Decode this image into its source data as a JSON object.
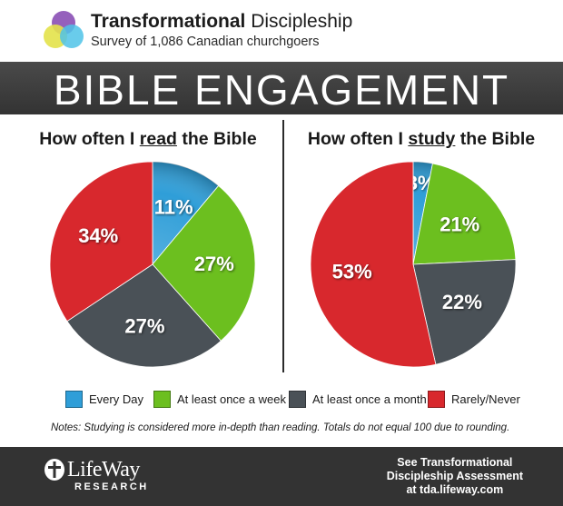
{
  "header": {
    "title_bold": "Transformational",
    "title_rest": " Discipleship",
    "subtitle": "Survey of 1,086 Canadian churchgoers"
  },
  "banner": {
    "title": "BIBLE ENGAGEMENT"
  },
  "chart_data": [
    {
      "type": "pie",
      "title_pre": "How often I ",
      "title_key": "read",
      "title_post": " the Bible",
      "categories": [
        "Every Day",
        "At least once a week",
        "At least once a month",
        "Rarely/Never"
      ],
      "values": [
        11,
        27,
        27,
        34
      ],
      "labels": [
        "11%",
        "27%",
        "27%",
        "34%"
      ]
    },
    {
      "type": "pie",
      "title_pre": "How often I ",
      "title_key": "study",
      "title_post": " the Bible",
      "categories": [
        "Every Day",
        "At least once a week",
        "At least once a month",
        "Rarely/Never"
      ],
      "values": [
        3,
        21,
        22,
        53
      ],
      "labels": [
        "3%",
        "21%",
        "22%",
        "53%"
      ]
    }
  ],
  "legend": {
    "items": [
      {
        "label": "Every Day",
        "color": "#2f9ed8"
      },
      {
        "label": "At least once a week",
        "color": "#6cbf1f"
      },
      {
        "label": "At least once a month",
        "color": "#4a5157"
      },
      {
        "label": "Rarely/Never",
        "color": "#d8282d"
      }
    ]
  },
  "colors": {
    "every_day": "#2f9ed8",
    "weekly": "#6cbf1f",
    "monthly": "#4a5157",
    "rarely": "#d8282d",
    "logo_purple": "#8a4fb5",
    "logo_yellow": "#e3e24a",
    "logo_blue": "#4fc3e8"
  },
  "notes": "Notes: Studying is considered more in-depth than reading. Totals do not equal 100 due to rounding.",
  "footer": {
    "brand": "LifeWay",
    "brand_sub": "RESEARCH",
    "cta_lines": [
      "See Transformational",
      "Discipleship Assessment",
      "at tda.lifeway.com"
    ]
  }
}
